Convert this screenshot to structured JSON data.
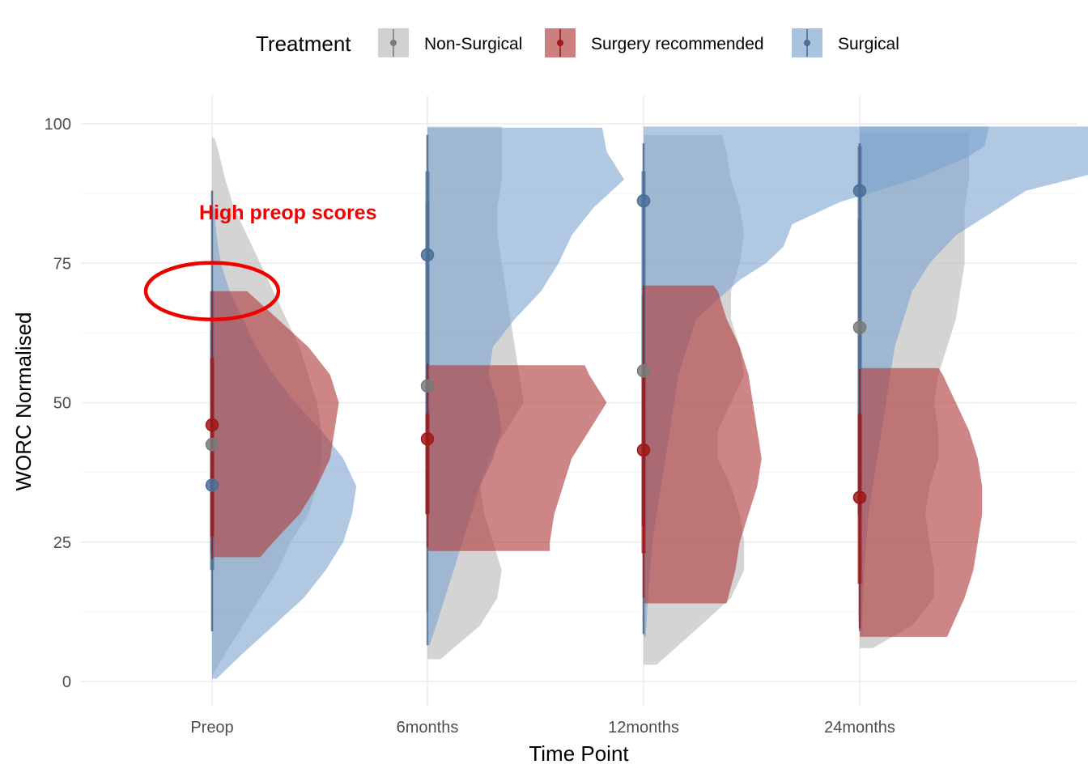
{
  "chart_data": {
    "type": "raincloud",
    "title": "",
    "xlabel": "Time Point",
    "ylabel": "WORC Normalised",
    "ylim": [
      -4,
      104
    ],
    "yticks": [
      0,
      25,
      50,
      75,
      100
    ],
    "categories": [
      "Preop",
      "6months",
      "12months",
      "24months"
    ],
    "grid": true,
    "legend": {
      "title": "Treatment",
      "placement": "top"
    },
    "series": [
      {
        "name": "Non-Surgical",
        "color": "#B8B8B8",
        "point_color": "#7A7A7A",
        "medians": [
          42.5,
          53,
          55.7,
          63.5
        ],
        "whisker_low": [
          9,
          12.5,
          8.5,
          11
        ],
        "whisker_high": [
          88,
          98,
          96.5,
          96.5
        ],
        "iqr_low": [
          23,
          30,
          28,
          30
        ],
        "iqr_high": [
          63,
          86,
          69.5,
          83
        ],
        "density": [
          [
            [
              1,
              0
            ],
            [
              5,
              0.03
            ],
            [
              10,
              0.07
            ],
            [
              15,
              0.11
            ],
            [
              20,
              0.15
            ],
            [
              25,
              0.18
            ],
            [
              30,
              0.22
            ],
            [
              35,
              0.24
            ],
            [
              40,
              0.25
            ],
            [
              45,
              0.25
            ],
            [
              50,
              0.24
            ],
            [
              55,
              0.22
            ],
            [
              60,
              0.2
            ],
            [
              65,
              0.17
            ],
            [
              70,
              0.14
            ],
            [
              75,
              0.11
            ],
            [
              80,
              0.08
            ],
            [
              85,
              0.05
            ],
            [
              90,
              0.03
            ],
            [
              95,
              0.015
            ],
            [
              97.5,
              0.005
            ]
          ],
          [
            [
              4,
              0.03
            ],
            [
              10,
              0.12
            ],
            [
              15,
              0.16
            ],
            [
              20,
              0.17
            ],
            [
              25,
              0.15
            ],
            [
              30,
              0.13
            ],
            [
              35,
              0.12
            ],
            [
              40,
              0.14
            ],
            [
              45,
              0.18
            ],
            [
              50,
              0.22
            ],
            [
              55,
              0.21
            ],
            [
              60,
              0.2
            ],
            [
              65,
              0.19
            ],
            [
              70,
              0.18
            ],
            [
              75,
              0.17
            ],
            [
              80,
              0.16
            ],
            [
              85,
              0.16
            ],
            [
              90,
              0.17
            ],
            [
              95,
              0.17
            ],
            [
              99.5,
              0.17
            ]
          ],
          [
            [
              3,
              0.03
            ],
            [
              10,
              0.13
            ],
            [
              15,
              0.2
            ],
            [
              20,
              0.23
            ],
            [
              25,
              0.23
            ],
            [
              30,
              0.22
            ],
            [
              35,
              0.2
            ],
            [
              40,
              0.17
            ],
            [
              45,
              0.17
            ],
            [
              50,
              0.2
            ],
            [
              55,
              0.23
            ],
            [
              60,
              0.22
            ],
            [
              65,
              0.2
            ],
            [
              70,
              0.2
            ],
            [
              75,
              0.22
            ],
            [
              80,
              0.23
            ],
            [
              85,
              0.22
            ],
            [
              90,
              0.2
            ],
            [
              95,
              0.19
            ],
            [
              98,
              0.18
            ]
          ],
          [
            [
              6,
              0.03
            ],
            [
              10,
              0.12
            ],
            [
              15,
              0.17
            ],
            [
              20,
              0.17
            ],
            [
              25,
              0.16
            ],
            [
              30,
              0.15
            ],
            [
              35,
              0.16
            ],
            [
              40,
              0.18
            ],
            [
              45,
              0.18
            ],
            [
              50,
              0.17
            ],
            [
              55,
              0.18
            ],
            [
              60,
              0.2
            ],
            [
              65,
              0.22
            ],
            [
              70,
              0.23
            ],
            [
              75,
              0.24
            ],
            [
              80,
              0.24
            ],
            [
              85,
              0.24
            ],
            [
              90,
              0.25
            ],
            [
              95,
              0.25
            ],
            [
              98.5,
              0.25
            ]
          ]
        ]
      },
      {
        "name": "Surgery recommended",
        "color": "#B03A3A",
        "point_color": "#A01818",
        "medians": [
          46,
          43.5,
          41.5,
          33
        ],
        "whisker_low": [
          22,
          24,
          15,
          9.5
        ],
        "whisker_high": [
          70,
          57,
          71,
          56
        ],
        "iqr_low": [
          26,
          30,
          23,
          17.5
        ],
        "iqr_high": [
          58,
          48,
          55,
          48
        ],
        "density": [
          [
            [
              22.3,
              0.11
            ],
            [
              25,
              0.14
            ],
            [
              30,
              0.2
            ],
            [
              35,
              0.24
            ],
            [
              40,
              0.27
            ],
            [
              45,
              0.28
            ],
            [
              50,
              0.29
            ],
            [
              55,
              0.27
            ],
            [
              60,
              0.22
            ],
            [
              65,
              0.15
            ],
            [
              70,
              0.08
            ]
          ],
          [
            [
              23.4,
              0.28
            ],
            [
              25,
              0.28
            ],
            [
              30,
              0.29
            ],
            [
              35,
              0.31
            ],
            [
              40,
              0.33
            ],
            [
              45,
              0.37
            ],
            [
              50,
              0.41
            ],
            [
              55,
              0.37
            ],
            [
              56.7,
              0.36
            ]
          ],
          [
            [
              14,
              0.19
            ],
            [
              20,
              0.21
            ],
            [
              25,
              0.22
            ],
            [
              30,
              0.24
            ],
            [
              35,
              0.26
            ],
            [
              40,
              0.27
            ],
            [
              45,
              0.26
            ],
            [
              50,
              0.25
            ],
            [
              55,
              0.24
            ],
            [
              60,
              0.22
            ],
            [
              65,
              0.19
            ],
            [
              70,
              0.17
            ],
            [
              71,
              0.16
            ]
          ],
          [
            [
              8,
              0.2
            ],
            [
              15,
              0.24
            ],
            [
              20,
              0.26
            ],
            [
              25,
              0.27
            ],
            [
              30,
              0.28
            ],
            [
              35,
              0.28
            ],
            [
              40,
              0.27
            ],
            [
              45,
              0.25
            ],
            [
              50,
              0.22
            ],
            [
              55,
              0.19
            ],
            [
              56.2,
              0.18
            ]
          ]
        ]
      },
      {
        "name": "Surgical",
        "color": "#7BA3CE",
        "point_color": "#4A6E98",
        "medians": [
          35.2,
          76.5,
          86.2,
          88
        ],
        "whisker_low": [
          9,
          6.5,
          8.5,
          9
        ],
        "whisker_high": [
          88,
          98,
          96.5,
          96.5
        ],
        "iqr_low": [
          20,
          30,
          28,
          30
        ],
        "iqr_high": [
          70,
          91.5,
          91.5,
          96
        ],
        "density": [
          [
            [
              0.5,
              0.01
            ],
            [
              5,
              0.07
            ],
            [
              10,
              0.14
            ],
            [
              15,
              0.21
            ],
            [
              20,
              0.26
            ],
            [
              25,
              0.3
            ],
            [
              30,
              0.32
            ],
            [
              35,
              0.33
            ],
            [
              40,
              0.3
            ],
            [
              45,
              0.25
            ],
            [
              50,
              0.19
            ],
            [
              55,
              0.14
            ],
            [
              60,
              0.1
            ],
            [
              65,
              0.07
            ],
            [
              70,
              0.04
            ],
            [
              75,
              0.02
            ],
            [
              80,
              0.01
            ],
            [
              85,
              0.005
            ]
          ],
          [
            [
              6.5,
              0.005
            ],
            [
              10,
              0.02
            ],
            [
              15,
              0.04
            ],
            [
              20,
              0.06
            ],
            [
              25,
              0.08
            ],
            [
              30,
              0.1
            ],
            [
              35,
              0.12
            ],
            [
              40,
              0.15
            ],
            [
              45,
              0.17
            ],
            [
              50,
              0.16
            ],
            [
              55,
              0.14
            ],
            [
              60,
              0.15
            ],
            [
              65,
              0.2
            ],
            [
              70,
              0.26
            ],
            [
              75,
              0.3
            ],
            [
              80,
              0.33
            ],
            [
              85,
              0.38
            ],
            [
              90,
              0.45
            ],
            [
              95,
              0.41
            ],
            [
              99.3,
              0.4
            ]
          ],
          [
            [
              8,
              0.005
            ],
            [
              15,
              0.01
            ],
            [
              25,
              0.02
            ],
            [
              35,
              0.04
            ],
            [
              45,
              0.06
            ],
            [
              55,
              0.08
            ],
            [
              65,
              0.12
            ],
            [
              72,
              0.22
            ],
            [
              75,
              0.28
            ],
            [
              78,
              0.32
            ],
            [
              82,
              0.34
            ],
            [
              86,
              0.45
            ],
            [
              90,
              0.62
            ],
            [
              94,
              0.74
            ],
            [
              96,
              0.78
            ],
            [
              99.5,
              0.79
            ]
          ],
          [
            [
              9,
              0.005
            ],
            [
              20,
              0.01
            ],
            [
              30,
              0.02
            ],
            [
              40,
              0.04
            ],
            [
              50,
              0.06
            ],
            [
              60,
              0.08
            ],
            [
              70,
              0.12
            ],
            [
              75,
              0.16
            ],
            [
              80,
              0.22
            ],
            [
              85,
              0.32
            ],
            [
              88,
              0.38
            ],
            [
              91,
              0.53
            ],
            [
              94,
              0.74
            ],
            [
              96,
              0.84
            ],
            [
              99.5,
              0.9
            ]
          ]
        ]
      }
    ],
    "annotation": {
      "text": "High preop scores",
      "color": "#F00000",
      "category": "Preop",
      "value": 84
    },
    "highlight": {
      "category": "Preop",
      "value": 70,
      "color": "#EE0000"
    }
  }
}
